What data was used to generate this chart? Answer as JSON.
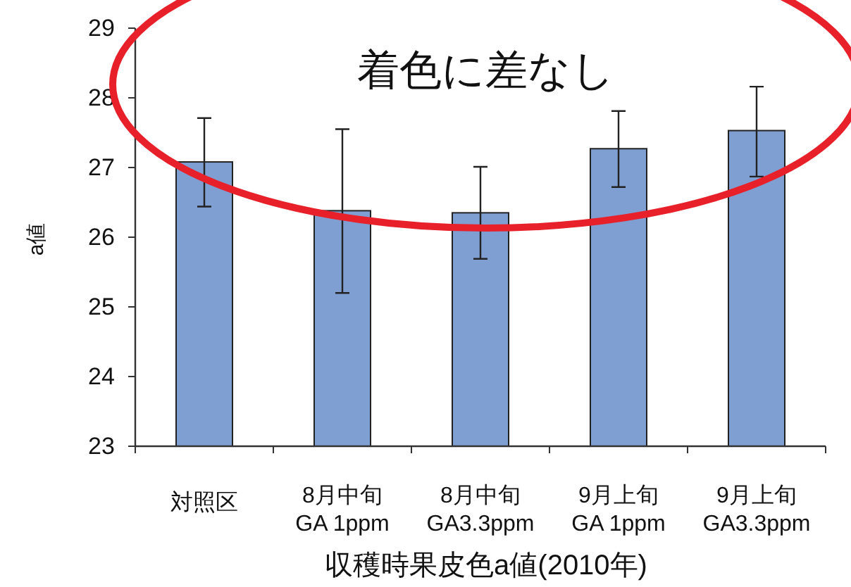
{
  "chart_data": {
    "type": "bar",
    "xlabel": "収穫時果皮色a値(2010年)",
    "ylabel": "a値",
    "annotations": [
      "着色に差なし"
    ],
    "categories": [
      "対照区",
      "8月中旬\nGA 1ppm",
      "8月中旬\nGA3.3ppm",
      "9月上旬\nGA 1ppm",
      "9月上旬\nGA3.3ppm"
    ],
    "values": [
      27.08,
      26.38,
      26.35,
      27.27,
      27.53
    ],
    "color": "#7f9fd3",
    "errors": [
      [
        26.44,
        27.71
      ],
      [
        25.2,
        27.55
      ],
      [
        25.69,
        27.01
      ],
      [
        26.72,
        27.81
      ],
      [
        26.87,
        28.16
      ]
    ],
    "ylim": [
      23,
      29
    ],
    "yticks": [
      23,
      24,
      25,
      26,
      27,
      28,
      29
    ]
  }
}
